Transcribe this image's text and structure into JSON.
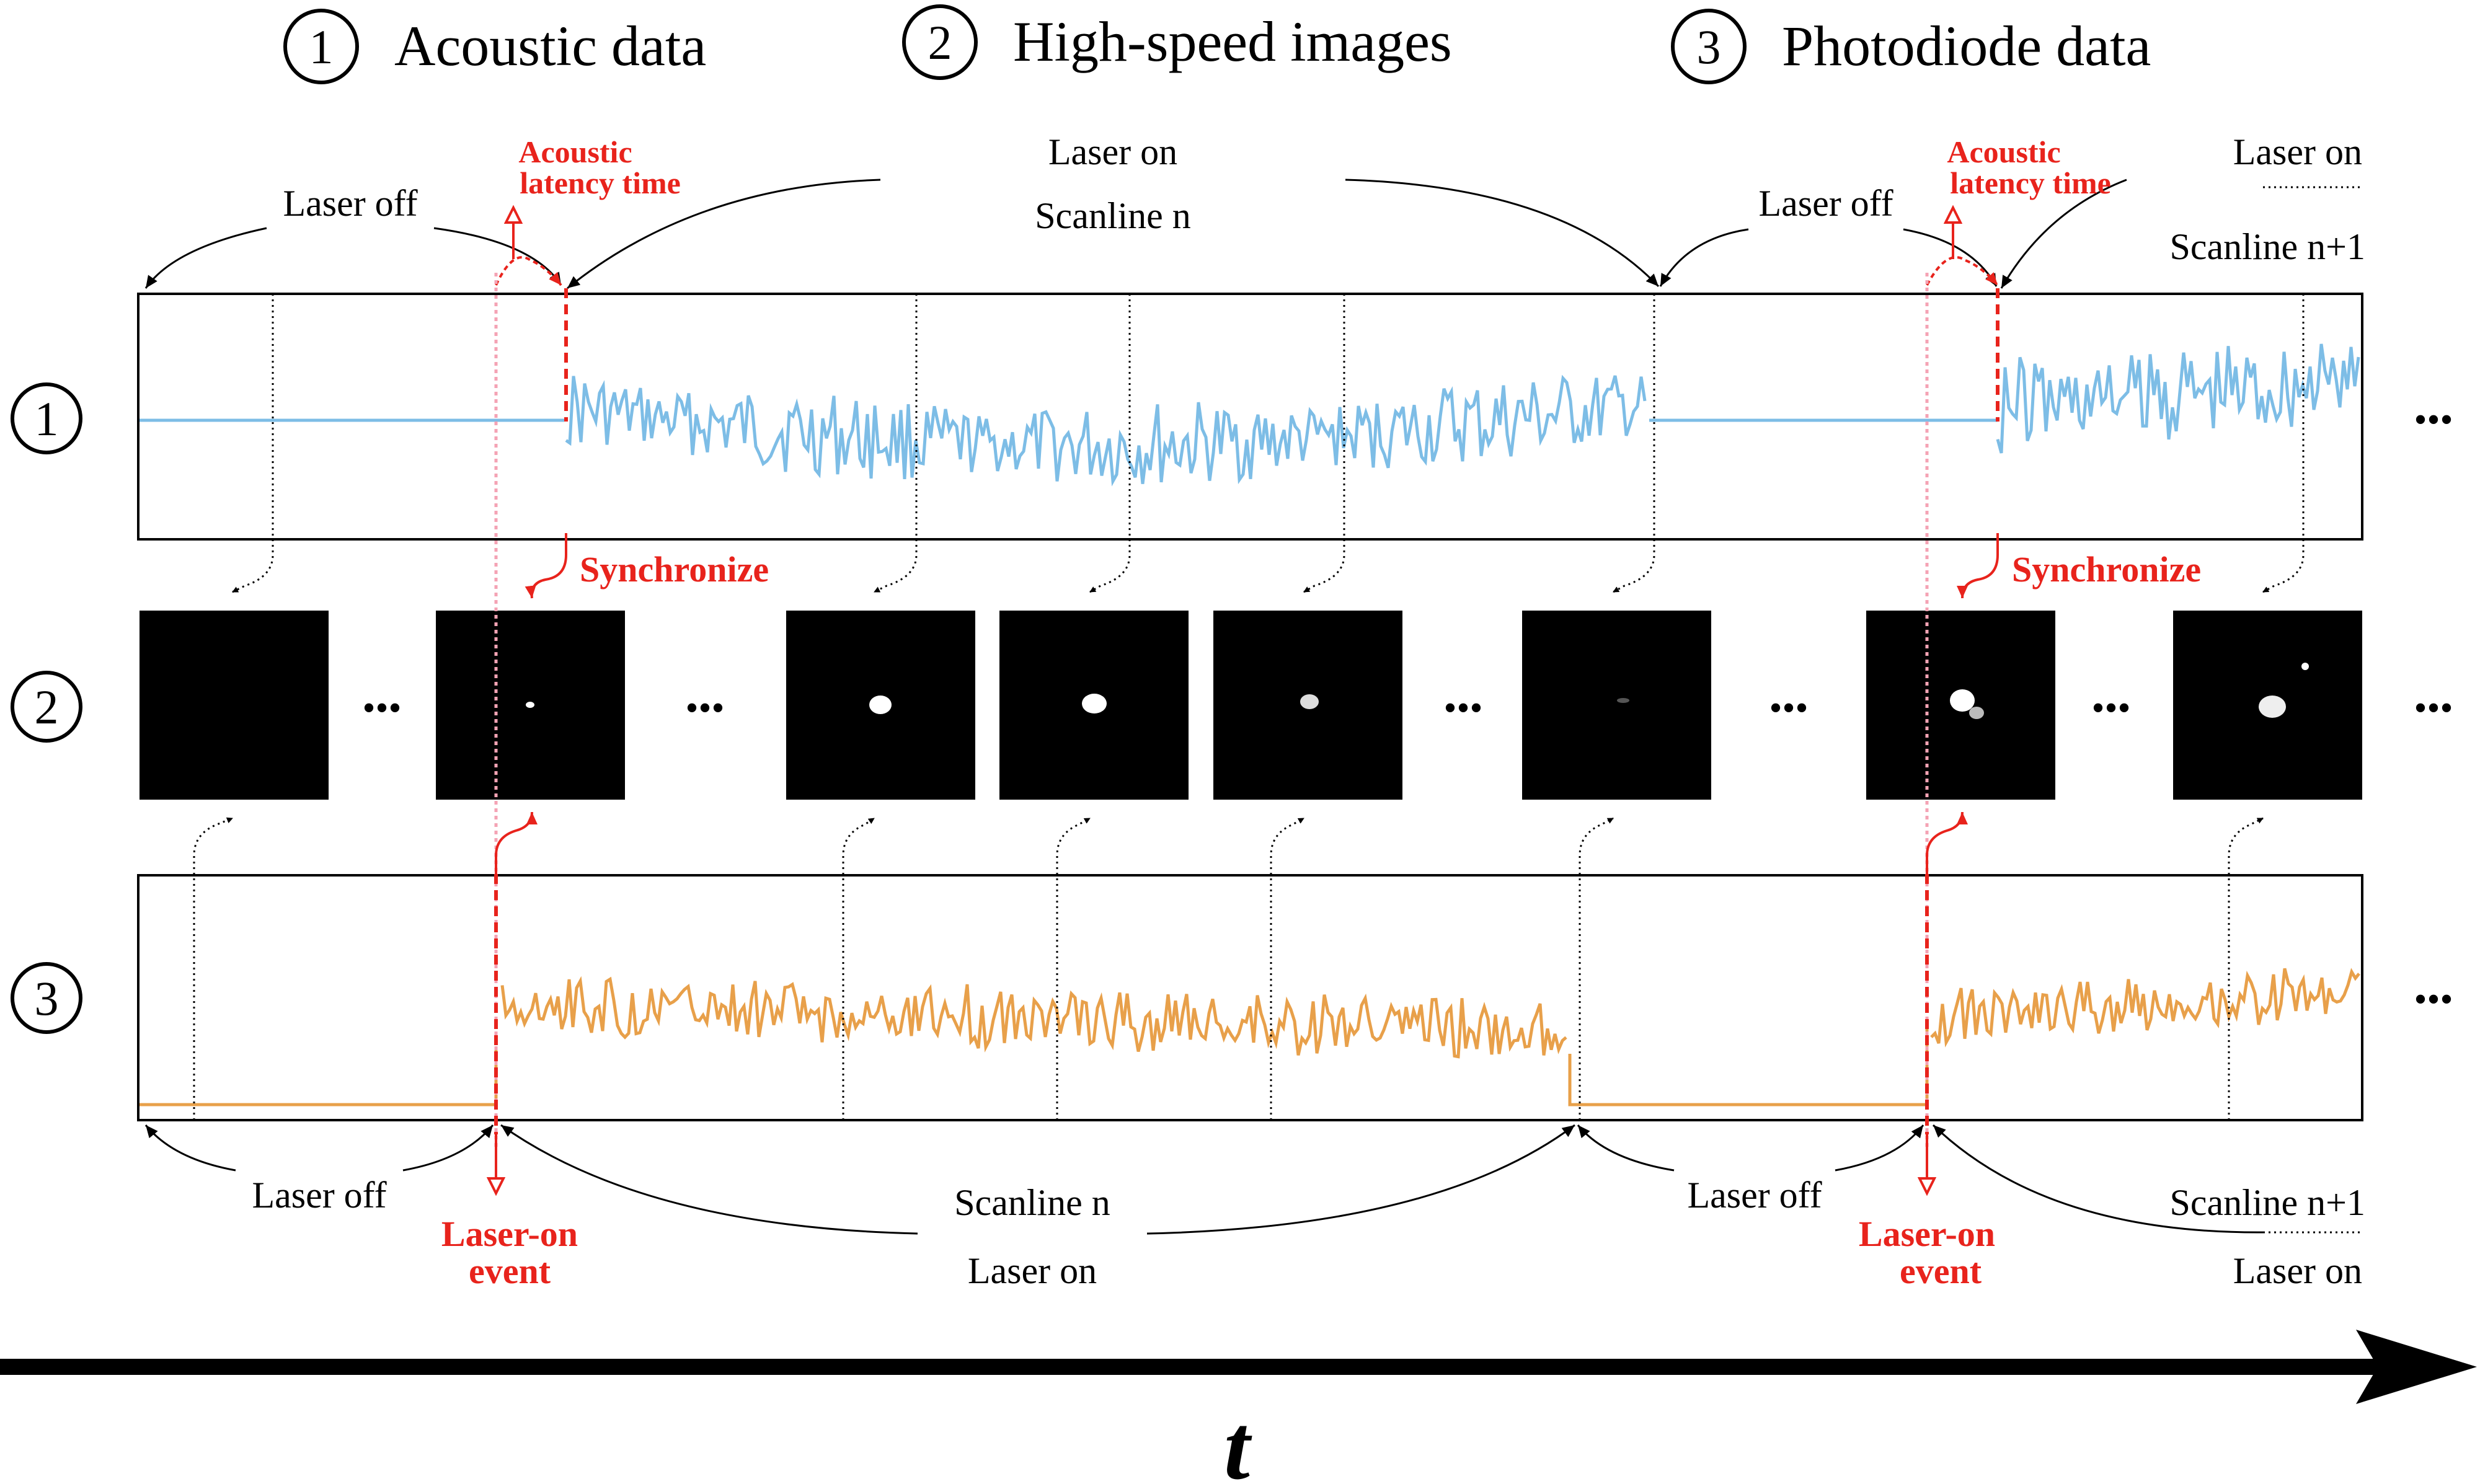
{
  "headers": {
    "h1": {
      "num": "1",
      "label": "Acoustic data"
    },
    "h2": {
      "num": "2",
      "label": "High-speed images"
    },
    "h3": {
      "num": "3",
      "label": "Photodiode data"
    }
  },
  "row_labels": [
    "1",
    "2",
    "3"
  ],
  "top_annotations": {
    "laser_off_left": "Laser off",
    "laser_off_right": "Laser off",
    "laser_on_middle": "Laser on",
    "scanline_n": "Scanline n",
    "laser_on_right": "Laser on",
    "scanline_n1": "Scanline n+1",
    "acoustic_latency_line1": "Acoustic",
    "acoustic_latency_line2": "latency time"
  },
  "sync_label": "Synchronize",
  "bottom_annotations": {
    "laser_off_left": "Laser off",
    "laser_off_right": "Laser off",
    "scanline_n": "Scanline n",
    "laser_on_middle": "Laser on",
    "scanline_n1": "Scanline n+1",
    "laser_on_right": "Laser on",
    "laser_on_event_line1": "Laser-on",
    "laser_on_event_line2": "event"
  },
  "ellipsis": "•••",
  "time_axis_label": "t",
  "colors": {
    "acoustic": "#7dbde6",
    "photodiode": "#e8a04a",
    "accent_red": "#e8231c",
    "latency_pink": "#f4a3b4"
  }
}
